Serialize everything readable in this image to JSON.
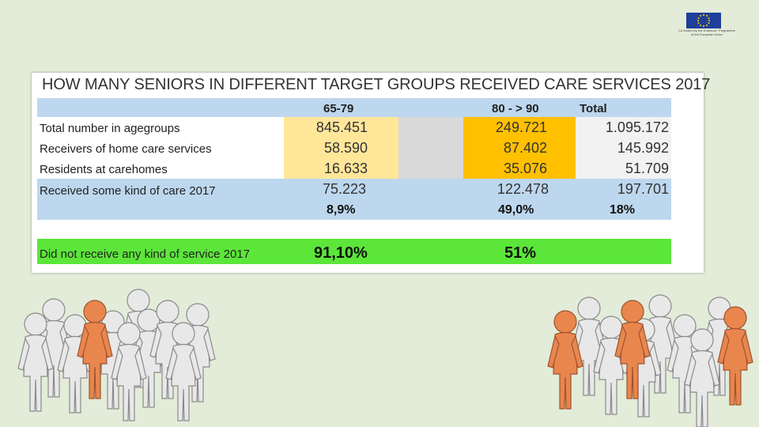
{
  "logo": {
    "caption_line1": "Co-funded by the Erasmus+ Programme",
    "caption_line2": "of the European Union"
  },
  "table": {
    "title": "HOW MANY SENIORS IN DIFFERENT TARGET GROUPS RECEIVED CARE SERVICES 2017",
    "headers": {
      "col1": "65-79",
      "col2": "80 - > 90",
      "col3": "Total"
    },
    "rows": [
      {
        "label": "Total number in agegroups",
        "v1": "845.451",
        "v2": "249.721",
        "v3": "1.095.172"
      },
      {
        "label": "Receivers of home care services",
        "v1": "58.590",
        "v2": "87.402",
        "v3": "145.992"
      },
      {
        "label": "Residents at carehomes",
        "v1": "16.633",
        "v2": "35.076",
        "v3": "51.709"
      }
    ],
    "care": {
      "label": "Received some kind of care 2017",
      "v1": "75.223",
      "v2": "122.478",
      "v3": "197.701",
      "p1": "8,9%",
      "p2": "49,0%",
      "p3": "18%"
    },
    "no_service": {
      "label": "Did not receive any kind of service 2017",
      "p1": "91,10%",
      "p2": "51%"
    }
  },
  "colors": {
    "blue_band": "#bdd7ee",
    "light_yellow": "#ffe699",
    "orange": "#ffc000",
    "grey": "#d9d9d9",
    "light_grey": "#f2f2f2",
    "green": "#5ce63a"
  }
}
